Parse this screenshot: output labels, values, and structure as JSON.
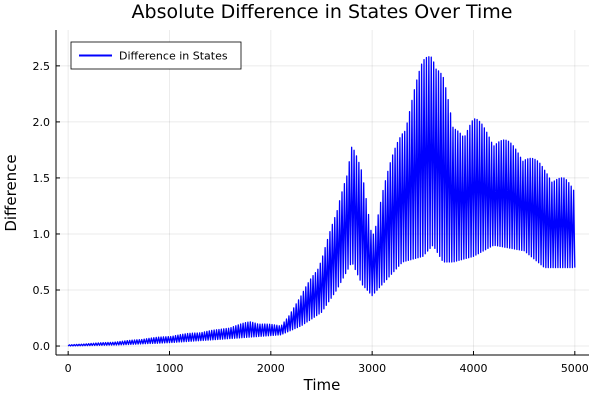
{
  "chart_data": {
    "type": "line",
    "title": "Absolute Difference in States Over Time",
    "xlabel": "Time",
    "ylabel": "Difference",
    "xlim": [
      -120,
      5140
    ],
    "ylim": [
      -0.08,
      2.82
    ],
    "xticks": [
      0,
      1000,
      2000,
      3000,
      4000,
      5000
    ],
    "yticks": [
      0.0,
      0.5,
      1.0,
      1.5,
      2.0,
      2.5
    ],
    "xtick_labels": [
      "0",
      "1000",
      "2000",
      "3000",
      "4000",
      "5000"
    ],
    "ytick_labels": [
      "0.0",
      "0.5",
      "1.0",
      "1.5",
      "2.0",
      "2.5"
    ],
    "grid": true,
    "legend": "top-left",
    "color": "#0000ff",
    "series": [
      {
        "name": "Difference in States",
        "oscillating": true,
        "points": [
          {
            "x": 0,
            "low": 0.0,
            "high": 0.01
          },
          {
            "x": 500,
            "low": 0.01,
            "high": 0.04
          },
          {
            "x": 1000,
            "low": 0.03,
            "high": 0.09
          },
          {
            "x": 1500,
            "low": 0.06,
            "high": 0.15
          },
          {
            "x": 1800,
            "low": 0.08,
            "high": 0.22
          },
          {
            "x": 2100,
            "low": 0.1,
            "high": 0.18
          },
          {
            "x": 2300,
            "low": 0.18,
            "high": 0.45
          },
          {
            "x": 2500,
            "low": 0.3,
            "high": 0.8
          },
          {
            "x": 2650,
            "low": 0.5,
            "high": 1.2
          },
          {
            "x": 2800,
            "low": 0.75,
            "high": 1.85
          },
          {
            "x": 2900,
            "low": 0.55,
            "high": 1.55
          },
          {
            "x": 3000,
            "low": 0.45,
            "high": 1.0
          },
          {
            "x": 3100,
            "low": 0.55,
            "high": 1.4
          },
          {
            "x": 3300,
            "low": 0.75,
            "high": 2.0
          },
          {
            "x": 3500,
            "low": 0.8,
            "high": 2.55
          },
          {
            "x": 3600,
            "low": 0.9,
            "high": 2.75
          },
          {
            "x": 3700,
            "low": 0.75,
            "high": 2.45
          },
          {
            "x": 3800,
            "low": 0.75,
            "high": 1.95
          },
          {
            "x": 4000,
            "low": 0.8,
            "high": 2.05
          },
          {
            "x": 4200,
            "low": 0.9,
            "high": 1.9
          },
          {
            "x": 4500,
            "low": 0.85,
            "high": 1.75
          },
          {
            "x": 4700,
            "low": 0.7,
            "high": 1.6
          },
          {
            "x": 4900,
            "low": 0.7,
            "high": 1.5
          },
          {
            "x": 5000,
            "low": 0.7,
            "high": 1.4
          }
        ]
      }
    ]
  }
}
